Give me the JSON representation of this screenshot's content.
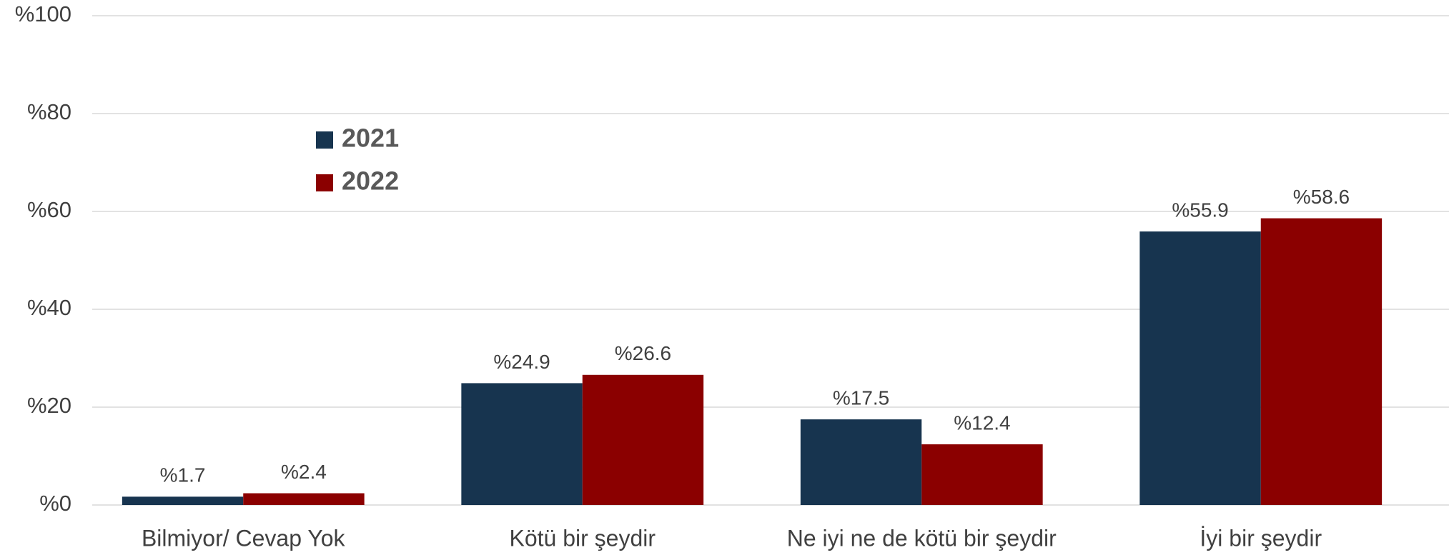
{
  "chart_data": {
    "type": "bar",
    "categories": [
      "Bilmiyor/ Cevap Yok",
      "Kötü bir şeydir",
      "Ne iyi ne de kötü bir şeydir",
      "İyi bir şeydir"
    ],
    "series": [
      {
        "name": "2021",
        "color": "#17344f",
        "values": [
          1.7,
          24.9,
          17.5,
          55.9
        ],
        "value_labels": [
          "%1.7",
          "%24.9",
          "%17.5",
          "%55.9"
        ]
      },
      {
        "name": "2022",
        "color": "#8b0000",
        "values": [
          2.4,
          26.6,
          12.4,
          58.6
        ],
        "value_labels": [
          "%2.4",
          "%26.6",
          "%12.4",
          "%58.6"
        ]
      }
    ],
    "ylim": [
      0,
      100
    ],
    "yticks": [
      {
        "value": 0,
        "label": "%0"
      },
      {
        "value": 20,
        "label": "%20"
      },
      {
        "value": 40,
        "label": "%40"
      },
      {
        "value": 60,
        "label": "%60"
      },
      {
        "value": 80,
        "label": "%80"
      },
      {
        "value": 100,
        "label": "%100"
      }
    ],
    "grid": true,
    "legend": "upper-left"
  }
}
